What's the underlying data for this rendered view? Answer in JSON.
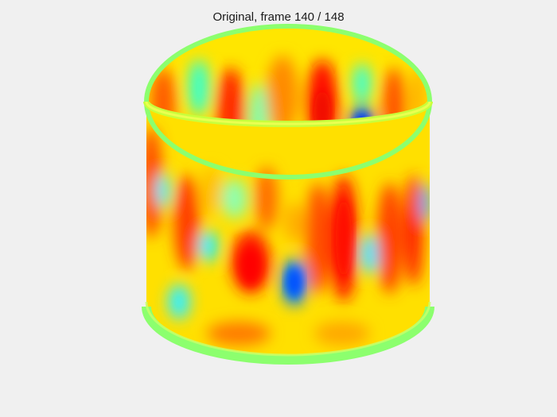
{
  "figure": {
    "title": "Original, frame 140 / 148",
    "colormap": "jet",
    "background": "#f0f0f0",
    "colors": {
      "red": "#ff1e00",
      "orange": "#ff7a00",
      "yellow": "#ffd400",
      "lime": "#c8ff3c",
      "green": "#8cff6e",
      "cyan": "#00ffee",
      "blue": "#0030ff"
    }
  }
}
